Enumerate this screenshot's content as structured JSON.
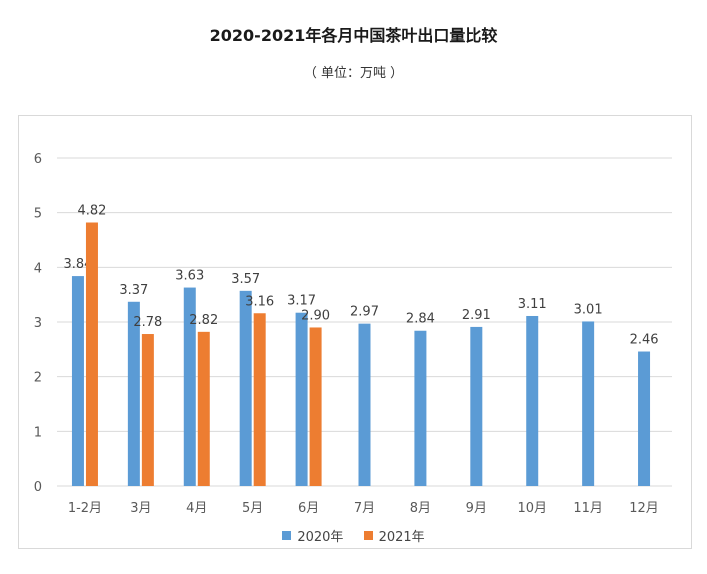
{
  "header": {
    "title": "2020-2021年各月中国茶叶出口量比较",
    "subtitle": "（ 单位：万吨 ）"
  },
  "colors": {
    "series_2020": "#5b9bd5",
    "series_2021": "#ed7d31",
    "grid": "#d9d9d9",
    "axis_text": "#595959"
  },
  "chart_data": {
    "type": "bar",
    "title": "2020-2021年各月中国茶叶出口量比较",
    "subtitle": "（ 单位：万吨 ）",
    "categories": [
      "1-2月",
      "3月",
      "4月",
      "5月",
      "6月",
      "7月",
      "8月",
      "9月",
      "10月",
      "11月",
      "12月"
    ],
    "series": [
      {
        "name": "2020年",
        "values": [
          3.84,
          3.37,
          3.63,
          3.57,
          3.17,
          2.97,
          2.84,
          2.91,
          3.11,
          3.01,
          2.46
        ]
      },
      {
        "name": "2021年",
        "values": [
          4.82,
          2.78,
          2.82,
          3.16,
          2.9,
          null,
          null,
          null,
          null,
          null,
          null
        ]
      }
    ],
    "data_labels": [
      [
        "3.84",
        "3.37",
        "3.63",
        "3.57",
        "3.17",
        "2.97",
        "2.84",
        "2.91",
        "3.11",
        "3.01",
        "2.46"
      ],
      [
        "4.82",
        "2.78",
        "2.82",
        "3.16",
        "2.90",
        "",
        "",
        "",
        "",
        "",
        ""
      ]
    ],
    "y_ticks": [
      "0",
      "1",
      "2",
      "3",
      "4",
      "5",
      "6"
    ],
    "ylim": [
      0,
      6
    ],
    "grid": true,
    "legend_position": "bottom"
  }
}
